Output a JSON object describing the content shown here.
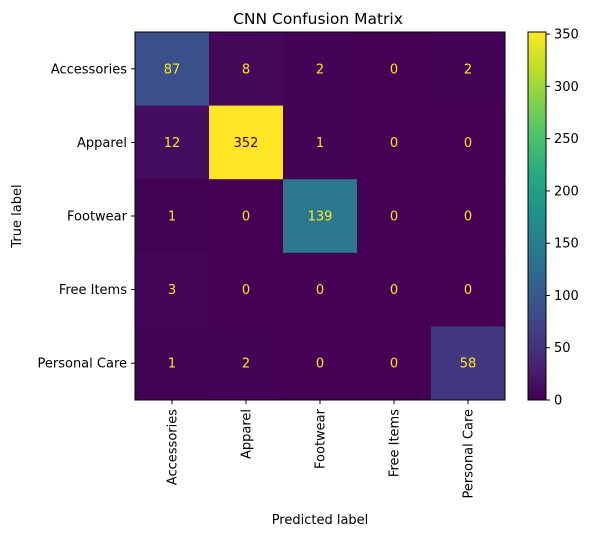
{
  "chart_data": {
    "type": "heatmap",
    "title": "CNN Confusion Matrix",
    "xlabel": "Predicted label",
    "ylabel": "True label",
    "x_categories": [
      "Accessories",
      "Apparel",
      "Footwear",
      "Free Items",
      "Personal Care"
    ],
    "y_categories": [
      "Accessories",
      "Apparel",
      "Footwear",
      "Free Items",
      "Personal Care"
    ],
    "values": [
      [
        87,
        8,
        2,
        0,
        2
      ],
      [
        12,
        352,
        1,
        0,
        0
      ],
      [
        1,
        0,
        139,
        0,
        0
      ],
      [
        3,
        0,
        0,
        0,
        0
      ],
      [
        1,
        2,
        0,
        0,
        58
      ]
    ],
    "colormap": "viridis",
    "color_range": [
      0,
      352
    ],
    "colorbar_ticks": [
      0,
      50,
      100,
      150,
      200,
      250,
      300,
      350
    ],
    "grid": false,
    "colors": {
      "text_on_dark": "#fde725",
      "text_on_light": "#440154"
    }
  }
}
